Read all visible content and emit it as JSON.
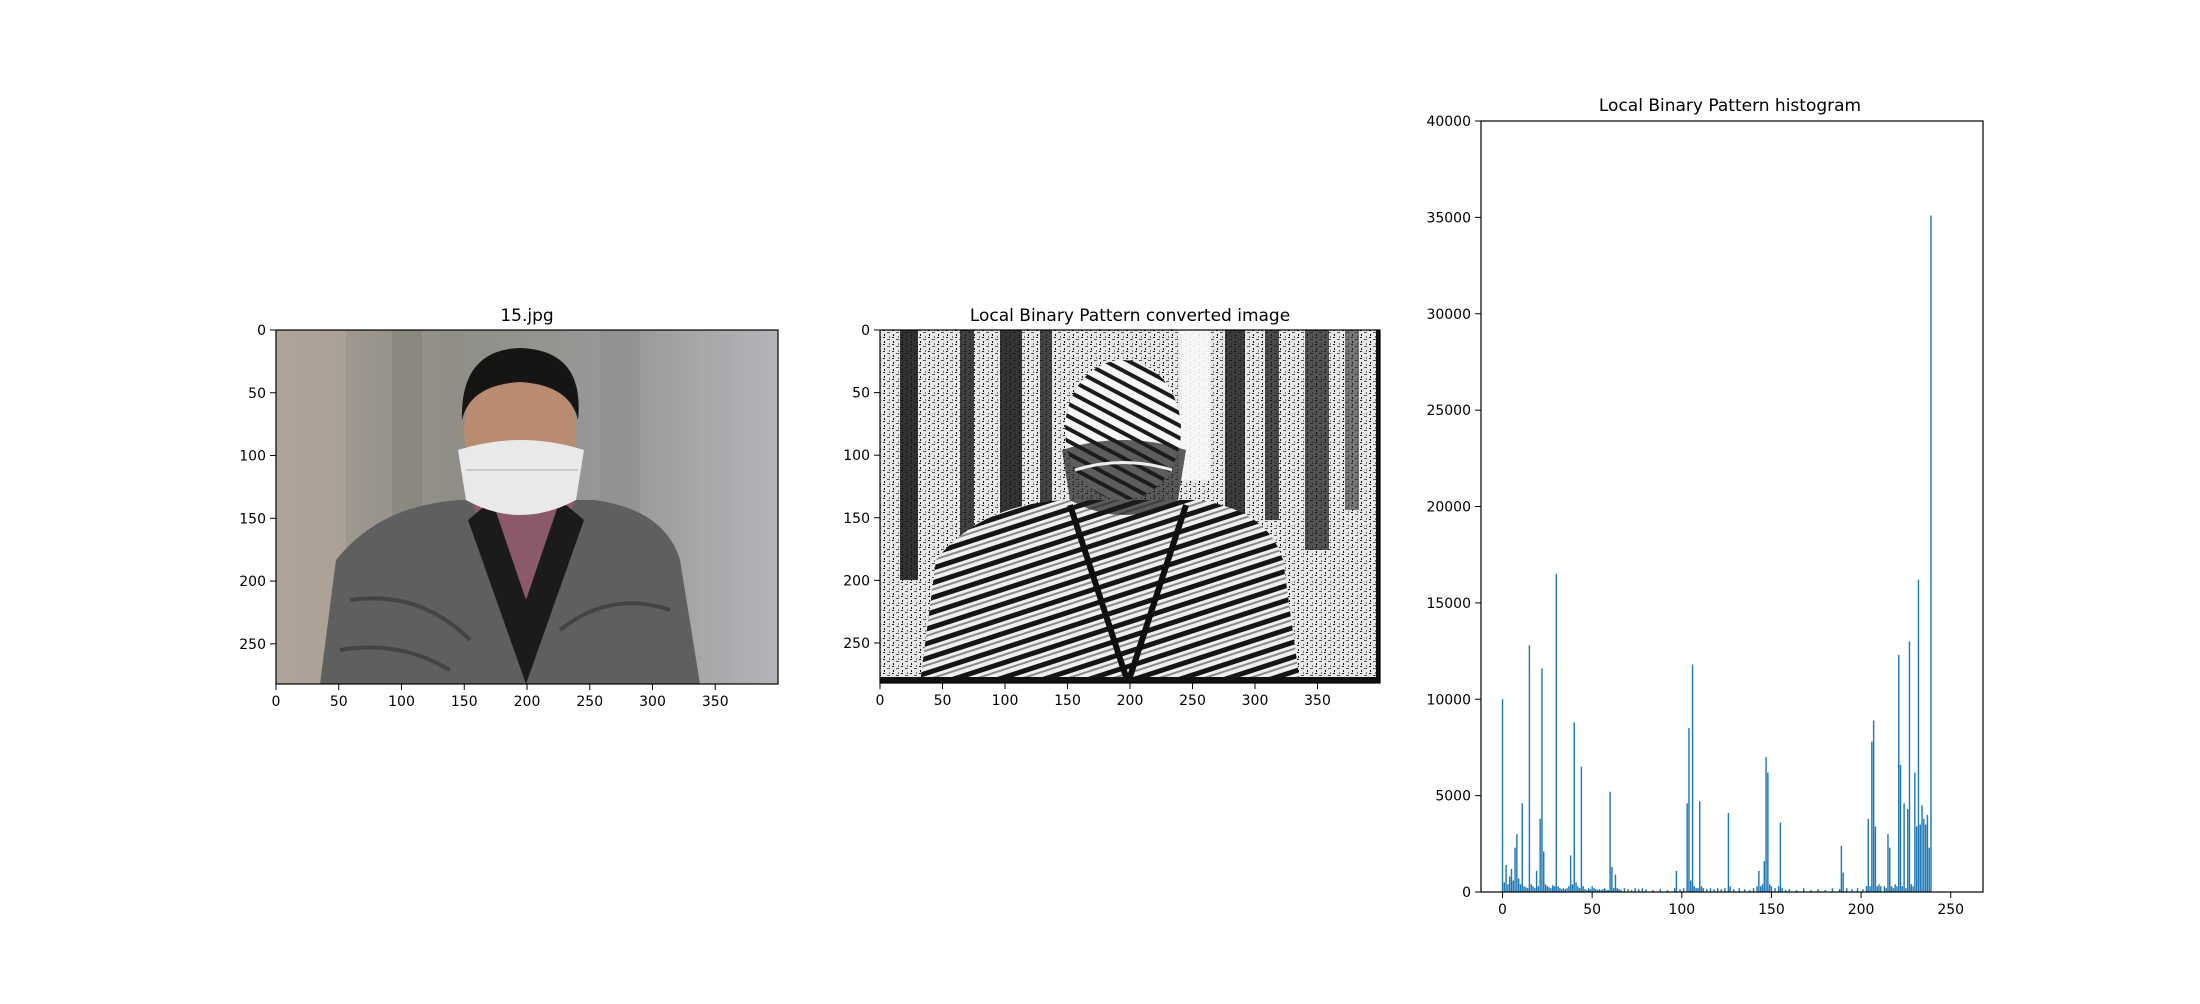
{
  "chart_data": [
    {
      "type": "image",
      "title": "15.jpg",
      "image_width": 400,
      "image_height": 282,
      "xticks": [
        0,
        50,
        100,
        150,
        200,
        250,
        300,
        350
      ],
      "yticks": [
        0,
        50,
        100,
        150,
        200,
        250
      ],
      "colors": {
        "background": "#9a9a94",
        "jacket": "#5d5f5e",
        "mask": "#e9e9ea",
        "hair": "#171513",
        "skin": "#b98b70"
      }
    },
    {
      "type": "image",
      "title": "Local Binary Pattern converted image",
      "image_width": 400,
      "image_height": 282,
      "xticks": [
        0,
        50,
        100,
        150,
        200,
        250,
        300,
        350
      ],
      "yticks": [
        0,
        50,
        100,
        150,
        200,
        250
      ],
      "colors": {
        "light": "#f2f2f2",
        "dark": "#111111"
      }
    },
    {
      "type": "bar",
      "title": "Local Binary Pattern histogram",
      "xlim": [
        -12,
        268
      ],
      "ylim": [
        0,
        40000
      ],
      "xticks": [
        0,
        50,
        100,
        150,
        200,
        250
      ],
      "yticks": [
        0,
        5000,
        10000,
        15000,
        20000,
        25000,
        30000,
        35000,
        40000
      ],
      "bar_color": "#1f77b4",
      "bars": [
        [
          0,
          10000
        ],
        [
          1,
          500
        ],
        [
          2,
          1400
        ],
        [
          3,
          400
        ],
        [
          4,
          800
        ],
        [
          5,
          1200
        ],
        [
          6,
          600
        ],
        [
          7,
          2300
        ],
        [
          8,
          3000
        ],
        [
          9,
          700
        ],
        [
          10,
          400
        ],
        [
          11,
          4600
        ],
        [
          12,
          300
        ],
        [
          13,
          250
        ],
        [
          14,
          200
        ],
        [
          15,
          12800
        ],
        [
          16,
          400
        ],
        [
          17,
          300
        ],
        [
          18,
          200
        ],
        [
          19,
          1100
        ],
        [
          20,
          300
        ],
        [
          21,
          3800
        ],
        [
          22,
          11600
        ],
        [
          23,
          2100
        ],
        [
          24,
          400
        ],
        [
          25,
          300
        ],
        [
          26,
          250
        ],
        [
          27,
          200
        ],
        [
          28,
          350
        ],
        [
          29,
          300
        ],
        [
          30,
          16500
        ],
        [
          31,
          300
        ],
        [
          32,
          200
        ],
        [
          33,
          150
        ],
        [
          34,
          200
        ],
        [
          35,
          150
        ],
        [
          36,
          200
        ],
        [
          37,
          300
        ],
        [
          38,
          1900
        ],
        [
          39,
          400
        ],
        [
          40,
          8800
        ],
        [
          41,
          500
        ],
        [
          42,
          300
        ],
        [
          43,
          200
        ],
        [
          44,
          6500
        ],
        [
          45,
          300
        ],
        [
          46,
          150
        ],
        [
          47,
          100
        ],
        [
          48,
          200
        ],
        [
          49,
          150
        ],
        [
          50,
          300
        ],
        [
          51,
          200
        ],
        [
          52,
          150
        ],
        [
          53,
          100
        ],
        [
          54,
          150
        ],
        [
          55,
          100
        ],
        [
          56,
          150
        ],
        [
          57,
          200
        ],
        [
          58,
          100
        ],
        [
          59,
          100
        ],
        [
          60,
          5200
        ],
        [
          61,
          1300
        ],
        [
          62,
          200
        ],
        [
          63,
          900
        ],
        [
          64,
          200
        ],
        [
          65,
          150
        ],
        [
          66,
          100
        ],
        [
          68,
          200
        ],
        [
          70,
          150
        ],
        [
          72,
          100
        ],
        [
          74,
          200
        ],
        [
          76,
          150
        ],
        [
          78,
          200
        ],
        [
          80,
          150
        ],
        [
          84,
          100
        ],
        [
          88,
          150
        ],
        [
          92,
          100
        ],
        [
          96,
          200
        ],
        [
          97,
          1100
        ],
        [
          99,
          150
        ],
        [
          101,
          200
        ],
        [
          103,
          4600
        ],
        [
          104,
          8500
        ],
        [
          105,
          600
        ],
        [
          106,
          11800
        ],
        [
          107,
          300
        ],
        [
          108,
          200
        ],
        [
          109,
          200
        ],
        [
          110,
          4700
        ],
        [
          111,
          300
        ],
        [
          112,
          200
        ],
        [
          114,
          150
        ],
        [
          116,
          200
        ],
        [
          118,
          150
        ],
        [
          120,
          200
        ],
        [
          122,
          150
        ],
        [
          124,
          200
        ],
        [
          126,
          4100
        ],
        [
          127,
          300
        ],
        [
          129,
          150
        ],
        [
          132,
          200
        ],
        [
          135,
          150
        ],
        [
          138,
          100
        ],
        [
          140,
          200
        ],
        [
          142,
          300
        ],
        [
          143,
          1100
        ],
        [
          144,
          300
        ],
        [
          145,
          400
        ],
        [
          146,
          1600
        ],
        [
          147,
          7000
        ],
        [
          148,
          6200
        ],
        [
          149,
          400
        ],
        [
          150,
          300
        ],
        [
          152,
          200
        ],
        [
          154,
          300
        ],
        [
          155,
          3600
        ],
        [
          156,
          200
        ],
        [
          158,
          100
        ],
        [
          160,
          150
        ],
        [
          164,
          100
        ],
        [
          168,
          200
        ],
        [
          172,
          100
        ],
        [
          176,
          150
        ],
        [
          180,
          100
        ],
        [
          184,
          200
        ],
        [
          188,
          150
        ],
        [
          189,
          2400
        ],
        [
          190,
          1000
        ],
        [
          192,
          200
        ],
        [
          195,
          150
        ],
        [
          198,
          200
        ],
        [
          201,
          150
        ],
        [
          203,
          300
        ],
        [
          204,
          3800
        ],
        [
          205,
          300
        ],
        [
          206,
          7800
        ],
        [
          207,
          8900
        ],
        [
          208,
          3400
        ],
        [
          209,
          300
        ],
        [
          210,
          400
        ],
        [
          211,
          300
        ],
        [
          213,
          300
        ],
        [
          214,
          200
        ],
        [
          215,
          3000
        ],
        [
          216,
          2300
        ],
        [
          217,
          300
        ],
        [
          218,
          200
        ],
        [
          219,
          400
        ],
        [
          220,
          300
        ],
        [
          221,
          12300
        ],
        [
          222,
          6600
        ],
        [
          223,
          300
        ],
        [
          224,
          4600
        ],
        [
          225,
          200
        ],
        [
          226,
          4300
        ],
        [
          227,
          13000
        ],
        [
          228,
          400
        ],
        [
          229,
          300
        ],
        [
          230,
          6200
        ],
        [
          231,
          3400
        ],
        [
          232,
          16200
        ],
        [
          233,
          3500
        ],
        [
          234,
          4500
        ],
        [
          235,
          3800
        ],
        [
          236,
          3500
        ],
        [
          237,
          4000
        ],
        [
          238,
          2300
        ],
        [
          239,
          35100
        ]
      ]
    }
  ]
}
